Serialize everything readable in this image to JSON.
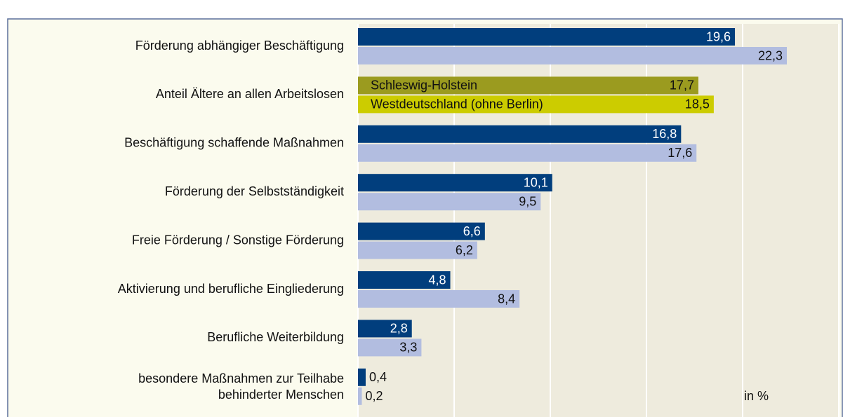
{
  "chart_data": {
    "type": "bar",
    "orientation": "horizontal",
    "categories": [
      "Förderung abhängiger Beschäftigung",
      "Anteil Ältere an allen Arbeitslosen",
      "Beschäftigung schaffende Maßnahmen",
      "Förderung der Selbstständigkeit",
      "Freie Förderung / Sonstige Förderung",
      "Aktivierung und berufliche Eingliederung",
      "Berufliche Weiterbildung",
      "besondere Maßnahmen zur Teilhabe\nbehinderter Menschen"
    ],
    "series": [
      {
        "name": "Schleswig-Holstein",
        "color": "#013e7d",
        "legend_color": "#9b9b1f",
        "values": [
          19.6,
          17.7,
          16.8,
          10.1,
          6.6,
          4.8,
          2.8,
          0.4
        ],
        "value_labels": [
          "19,6",
          "17,7",
          "16,8",
          "10,1",
          "6,6",
          "4,8",
          "2,8",
          "0,4"
        ]
      },
      {
        "name": "Westdeutschland (ohne Berlin)",
        "color": "#b2bde0",
        "legend_color": "#cccc00",
        "values": [
          22.3,
          18.5,
          17.6,
          9.5,
          6.2,
          8.4,
          3.3,
          0.2
        ],
        "value_labels": [
          "22,3",
          "18,5",
          "17,6",
          "9,5",
          "6,2",
          "8,4",
          "3,3",
          "0,2"
        ]
      }
    ],
    "legend_in_category": 1,
    "xlim": [
      0,
      25
    ],
    "xticks": [
      0,
      5,
      10,
      15,
      20,
      25
    ],
    "grid": true,
    "unit_label": "in %"
  }
}
